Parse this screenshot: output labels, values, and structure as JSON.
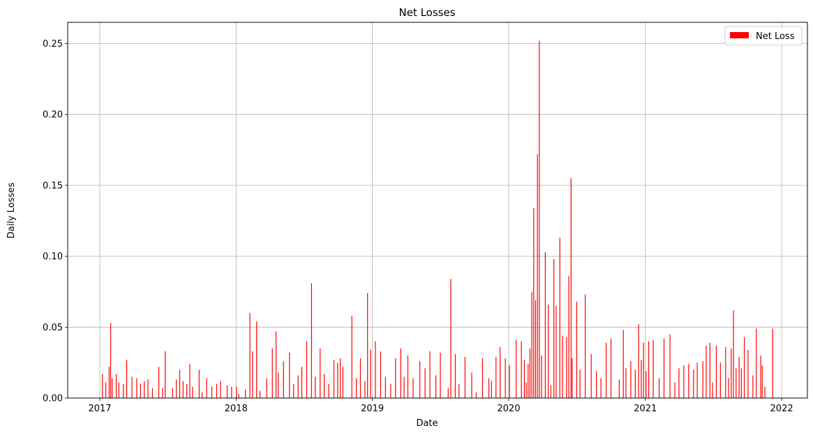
{
  "chart_data": {
    "type": "bar",
    "title": "Net Losses",
    "xlabel": "Date",
    "ylabel": "Daily Losses",
    "xlim": [
      "2016-10-07",
      "2022-03-11"
    ],
    "ylim": [
      0,
      0.265
    ],
    "x_ticks": [
      "2017",
      "2018",
      "2019",
      "2020",
      "2021",
      "2022"
    ],
    "y_ticks": [
      "0.00",
      "0.05",
      "0.10",
      "0.15",
      "0.20",
      "0.25"
    ],
    "grid": true,
    "legend": {
      "position": "upper right",
      "entries": [
        "Net Loss"
      ]
    },
    "series": [
      {
        "name": "Net Loss",
        "color": "#ff0000",
        "x": [
          "2017-01-08",
          "2017-01-17",
          "2017-01-26",
          "2017-01-30",
          "2017-02-03",
          "2017-02-14",
          "2017-02-21",
          "2017-03-05",
          "2017-03-14",
          "2017-03-28",
          "2017-04-10",
          "2017-04-20",
          "2017-04-30",
          "2017-05-10",
          "2017-05-22",
          "2017-06-08",
          "2017-06-18",
          "2017-06-25",
          "2017-07-15",
          "2017-07-25",
          "2017-08-03",
          "2017-08-12",
          "2017-08-22",
          "2017-08-30",
          "2017-09-06",
          "2017-09-24",
          "2017-10-02",
          "2017-10-14",
          "2017-10-28",
          "2017-11-10",
          "2017-11-20",
          "2017-12-08",
          "2017-12-20",
          "2018-01-02",
          "2018-01-08",
          "2018-01-26",
          "2018-02-07",
          "2018-02-14",
          "2018-02-25",
          "2018-03-06",
          "2018-03-24",
          "2018-04-08",
          "2018-04-18",
          "2018-04-24",
          "2018-05-08",
          "2018-05-24",
          "2018-06-04",
          "2018-06-16",
          "2018-06-26",
          "2018-07-09",
          "2018-07-22",
          "2018-08-01",
          "2018-08-14",
          "2018-08-25",
          "2018-09-06",
          "2018-09-20",
          "2018-09-30",
          "2018-10-07",
          "2018-10-14",
          "2018-11-07",
          "2018-11-19",
          "2018-11-30",
          "2018-12-12",
          "2018-12-19",
          "2018-12-27",
          "2019-01-09",
          "2019-01-23",
          "2019-02-05",
          "2019-02-19",
          "2019-03-04",
          "2019-03-18",
          "2019-03-27",
          "2019-04-06",
          "2019-04-20",
          "2019-05-08",
          "2019-05-22",
          "2019-06-04",
          "2019-06-20",
          "2019-07-02",
          "2019-07-23",
          "2019-07-30",
          "2019-08-11",
          "2019-08-21",
          "2019-09-06",
          "2019-09-24",
          "2019-10-06",
          "2019-10-23",
          "2019-11-09",
          "2019-11-16",
          "2019-11-28",
          "2019-12-09",
          "2019-12-23",
          "2020-01-03",
          "2020-01-21",
          "2020-02-04",
          "2020-02-12",
          "2020-02-17",
          "2020-02-22",
          "2020-02-27",
          "2020-03-03",
          "2020-03-08",
          "2020-03-13",
          "2020-03-18",
          "2020-03-23",
          "2020-03-29",
          "2020-04-08",
          "2020-04-16",
          "2020-04-23",
          "2020-05-01",
          "2020-05-07",
          "2020-05-17",
          "2020-05-24",
          "2020-06-04",
          "2020-06-10",
          "2020-06-16",
          "2020-06-19",
          "2020-07-01",
          "2020-07-10",
          "2020-07-24",
          "2020-08-09",
          "2020-08-23",
          "2020-09-04",
          "2020-09-18",
          "2020-10-01",
          "2020-10-23",
          "2020-11-03",
          "2020-11-10",
          "2020-11-23",
          "2020-12-05",
          "2020-12-14",
          "2020-12-21",
          "2020-12-27",
          "2021-01-03",
          "2021-01-10",
          "2021-01-22",
          "2021-02-07",
          "2021-02-20",
          "2021-03-08",
          "2021-03-21",
          "2021-04-01",
          "2021-04-14",
          "2021-04-27",
          "2021-05-10",
          "2021-05-20",
          "2021-06-04",
          "2021-06-13",
          "2021-06-23",
          "2021-06-30",
          "2021-07-10",
          "2021-07-21",
          "2021-08-04",
          "2021-08-12",
          "2021-08-19",
          "2021-08-25",
          "2021-09-01",
          "2021-09-09",
          "2021-09-15",
          "2021-09-23",
          "2021-10-03",
          "2021-10-16",
          "2021-10-25",
          "2021-11-06",
          "2021-11-10",
          "2021-11-17",
          "2021-12-08"
        ],
        "values": [
          0.017,
          0.011,
          0.022,
          0.053,
          0.014,
          0.017,
          0.011,
          0.01,
          0.027,
          0.015,
          0.014,
          0.01,
          0.012,
          0.013,
          0.007,
          0.022,
          0.007,
          0.033,
          0.007,
          0.013,
          0.02,
          0.012,
          0.01,
          0.024,
          0.008,
          0.02,
          0.004,
          0.014,
          0.008,
          0.01,
          0.012,
          0.009,
          0.008,
          0.008,
          0.003,
          0.006,
          0.06,
          0.033,
          0.054,
          0.005,
          0.014,
          0.035,
          0.047,
          0.018,
          0.026,
          0.032,
          0.01,
          0.016,
          0.022,
          0.04,
          0.081,
          0.015,
          0.035,
          0.017,
          0.01,
          0.027,
          0.025,
          0.028,
          0.022,
          0.058,
          0.014,
          0.028,
          0.012,
          0.074,
          0.034,
          0.04,
          0.033,
          0.015,
          0.01,
          0.028,
          0.035,
          0.015,
          0.03,
          0.014,
          0.026,
          0.021,
          0.033,
          0.016,
          0.032,
          0.007,
          0.084,
          0.031,
          0.01,
          0.029,
          0.018,
          0.004,
          0.028,
          0.014,
          0.012,
          0.029,
          0.036,
          0.028,
          0.023,
          0.041,
          0.04,
          0.027,
          0.011,
          0.024,
          0.035,
          0.075,
          0.134,
          0.069,
          0.172,
          0.252,
          0.03,
          0.103,
          0.066,
          0.009,
          0.098,
          0.065,
          0.113,
          0.044,
          0.043,
          0.086,
          0.155,
          0.028,
          0.068,
          0.02,
          0.073,
          0.031,
          0.019,
          0.014,
          0.039,
          0.042,
          0.013,
          0.048,
          0.021,
          0.026,
          0.02,
          0.052,
          0.027,
          0.039,
          0.019,
          0.04,
          0.041,
          0.014,
          0.042,
          0.045,
          0.011,
          0.021,
          0.023,
          0.024,
          0.02,
          0.025,
          0.026,
          0.037,
          0.039,
          0.011,
          0.037,
          0.025,
          0.036,
          0.014,
          0.035,
          0.062,
          0.021,
          0.029,
          0.021,
          0.043,
          0.034,
          0.016,
          0.049,
          0.03,
          0.023,
          0.008,
          0.049
        ]
      }
    ]
  }
}
